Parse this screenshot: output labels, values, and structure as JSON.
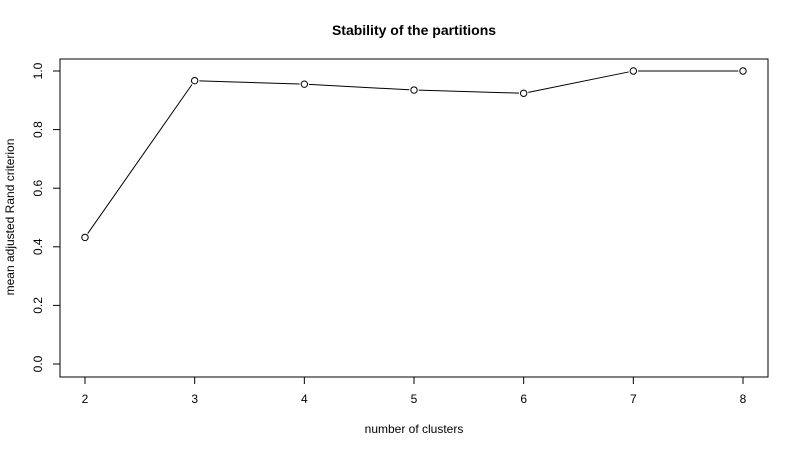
{
  "chart_data": {
    "type": "line",
    "title": "Stability of the partitions",
    "xlabel": "number of clusters",
    "ylabel": "mean adjusted Rand criterion",
    "x": [
      2,
      3,
      4,
      5,
      6,
      7,
      8
    ],
    "series": [
      {
        "values": [
          0.432,
          0.967,
          0.955,
          0.935,
          0.924,
          1.0,
          1.0
        ]
      }
    ],
    "xlim": [
      2,
      8
    ],
    "ylim": [
      0,
      1
    ],
    "x_ticks": [
      2,
      3,
      4,
      5,
      6,
      7,
      8
    ],
    "y_ticks": [
      0.0,
      0.2,
      0.4,
      0.6,
      0.8,
      1.0
    ],
    "y_tick_labels": [
      "0.0",
      "0.2",
      "0.4",
      "0.6",
      "0.8",
      "1.0"
    ],
    "x_tick_labels": [
      "2",
      "3",
      "4",
      "5",
      "6",
      "7",
      "8"
    ],
    "grid": false,
    "markers": "open-circle"
  }
}
